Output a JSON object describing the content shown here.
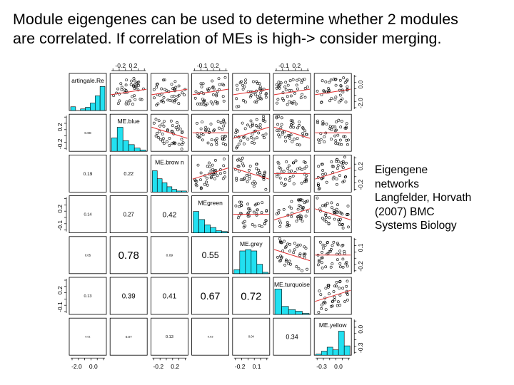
{
  "slide": {
    "title_lines": [
      "Module eigengenes can be used to determine whether 2 modules",
      "are correlated. If correlation of MEs is high-> consider merging."
    ],
    "side_lines": [
      "Eigengene",
      "networks",
      "Langfelder, Horvath",
      "(2007) BMC",
      "Systems Biology"
    ]
  },
  "colors": {
    "histogram_fill": "#22e0f0",
    "fit_line": "#e03030",
    "panel_border": "#000000"
  },
  "matrix": {
    "variables": [
      "artingale.Re",
      "ME.blue",
      "ME.brow n",
      "MEgreen",
      "ME.grey",
      "ME.turquoise",
      "ME.yellow"
    ],
    "top_axis_labels": [
      {
        "col": 1,
        "ticks": [
          "-0.2",
          "0.2"
        ]
      },
      {
        "col": 3,
        "ticks": [
          "-0.1",
          "0.2"
        ]
      },
      {
        "col": 5,
        "ticks": [
          "-0.1",
          "0.2"
        ]
      }
    ],
    "bottom_axis_labels": [
      {
        "col": 0,
        "ticks": [
          "-2.0",
          "0.0"
        ]
      },
      {
        "col": 2,
        "ticks": [
          "-0.2",
          "0.2"
        ]
      },
      {
        "col": 4,
        "ticks": [
          "-0.2",
          "0.1"
        ]
      },
      {
        "col": 6,
        "ticks": [
          "-0.3",
          "0.0"
        ]
      }
    ],
    "left_axis_labels": [
      {
        "row": 1,
        "ticks": [
          "-0.2",
          "0.2"
        ]
      },
      {
        "row": 3,
        "ticks": [
          "-0.1",
          "0.2"
        ]
      },
      {
        "row": 5,
        "ticks": [
          "-0.1",
          "0.2"
        ]
      }
    ],
    "right_axis_labels": [
      {
        "row": 0,
        "ticks": [
          "-2.0",
          "0.0"
        ]
      },
      {
        "row": 2,
        "ticks": [
          "-0.2",
          "0.2"
        ]
      },
      {
        "row": 4,
        "ticks": [
          "-0.2",
          "0.1"
        ]
      },
      {
        "row": 6,
        "ticks": [
          "-0.3",
          "0.0"
        ]
      }
    ],
    "correlations": [
      {
        "row": 1,
        "col": 0,
        "text": "0.08"
      },
      {
        "row": 2,
        "col": 0,
        "text": "0.19"
      },
      {
        "row": 3,
        "col": 0,
        "text": "0.14"
      },
      {
        "row": 4,
        "col": 0,
        "text": "0.05"
      },
      {
        "row": 5,
        "col": 0,
        "text": "0.13"
      },
      {
        "row": 6,
        "col": 0,
        "text": "0.01"
      },
      {
        "row": 2,
        "col": 1,
        "text": "0.22"
      },
      {
        "row": 3,
        "col": 1,
        "text": "0.27"
      },
      {
        "row": 4,
        "col": 1,
        "text": "0.78"
      },
      {
        "row": 5,
        "col": 1,
        "text": "0.39"
      },
      {
        "row": 6,
        "col": 1,
        "text": "0.07"
      },
      {
        "row": 3,
        "col": 2,
        "text": "0.42"
      },
      {
        "row": 4,
        "col": 2,
        "text": "0.09"
      },
      {
        "row": 5,
        "col": 2,
        "text": "0.41"
      },
      {
        "row": 6,
        "col": 2,
        "text": "0.13"
      },
      {
        "row": 4,
        "col": 3,
        "text": "0.55"
      },
      {
        "row": 5,
        "col": 3,
        "text": "0.67"
      },
      {
        "row": 6,
        "col": 3,
        "text": "0.03"
      },
      {
        "row": 5,
        "col": 4,
        "text": "0.72"
      },
      {
        "row": 6,
        "col": 4,
        "text": "0.04"
      },
      {
        "row": 6,
        "col": 5,
        "text": "0.34"
      }
    ],
    "histograms": [
      [
        0.14,
        0,
        0.06,
        0.12,
        0.28,
        0.55,
        0.9
      ],
      [
        0.5,
        0.9,
        0.4,
        0.25,
        0.12,
        0.05
      ],
      [
        0.8,
        0.5,
        0.35,
        0.2,
        0.1,
        0.04,
        0.04
      ],
      [
        0.8,
        0.5,
        0.3,
        0.2,
        0.08,
        0.05
      ],
      [
        0.15,
        0.85,
        0.9,
        0.85,
        0.35,
        0.05
      ],
      [
        0.95,
        0.3,
        0.18,
        0.12,
        0.04
      ],
      [
        0.04,
        0.15,
        0.3,
        0.2,
        0.9,
        0.35
      ]
    ]
  }
}
